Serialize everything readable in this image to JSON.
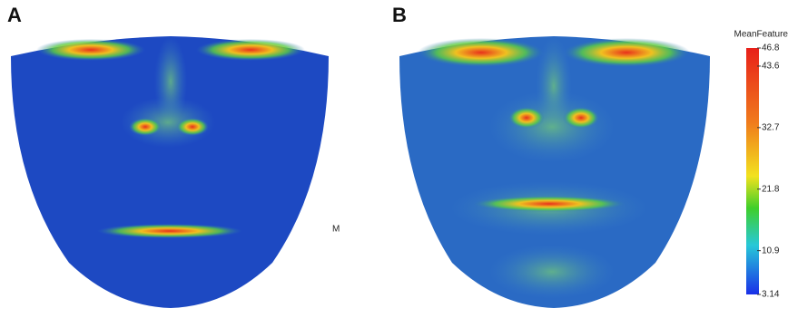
{
  "panels": [
    {
      "label": "A"
    },
    {
      "label": "B"
    }
  ],
  "annotation": "M",
  "colorbar": {
    "title": "MeanFeature",
    "range": [
      3.14,
      46.8
    ],
    "ticks": [
      46.8,
      43.6,
      32.7,
      21.8,
      10.9,
      3.14
    ]
  }
}
